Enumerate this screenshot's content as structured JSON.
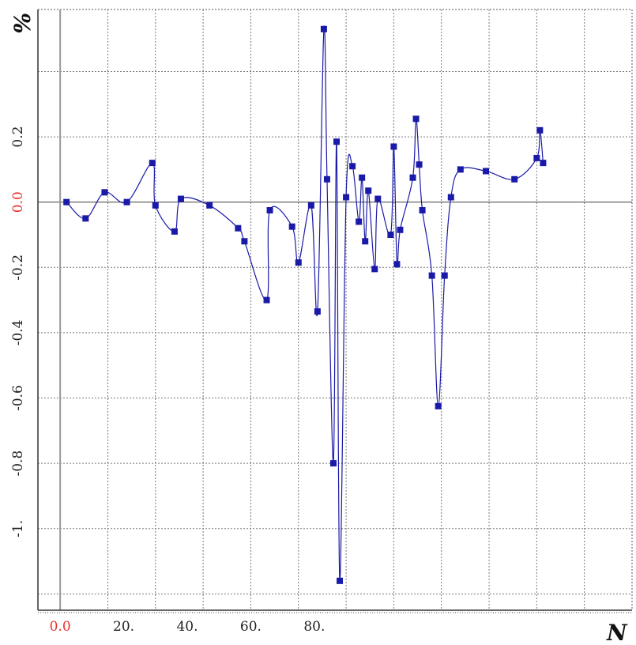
{
  "chart_data": {
    "type": "line",
    "title": "",
    "xlabel": "N",
    "ylabel": "%",
    "xlim": [
      -7,
      180
    ],
    "ylim": [
      -1.25,
      0.59
    ],
    "grid": true,
    "x_ticks": [
      {
        "value": 0,
        "label": "0.0",
        "color": "#e8302a"
      },
      {
        "value": 20,
        "label": "20."
      },
      {
        "value": 40,
        "label": "40."
      },
      {
        "value": 60,
        "label": "60."
      },
      {
        "value": 80,
        "label": "80."
      }
    ],
    "y_ticks": [
      {
        "value": 0.2,
        "label": "0.2"
      },
      {
        "value": 0.0,
        "label": "0.0",
        "color": "#e8302a"
      },
      {
        "value": -0.2,
        "label": "-0.2"
      },
      {
        "value": -0.4,
        "label": "-0.4"
      },
      {
        "value": -0.6,
        "label": "-0.6"
      },
      {
        "value": -0.8,
        "label": "-0.8"
      },
      {
        "value": -1.0,
        "label": "-1."
      }
    ],
    "x_gridlines": [
      15,
      30,
      45,
      60,
      75,
      90,
      105,
      120,
      135,
      150,
      165
    ],
    "y_gridlines": [
      0.4,
      0.2,
      -0.2,
      -0.4,
      -0.6,
      -0.8,
      -1.0,
      -1.2
    ],
    "series": [
      {
        "name": "",
        "color": "#1a1aa8",
        "marker": "square",
        "points": [
          [
            2,
            0.0
          ],
          [
            8,
            -0.05
          ],
          [
            14,
            0.03
          ],
          [
            21,
            0.0
          ],
          [
            29,
            0.12
          ],
          [
            30,
            -0.01
          ],
          [
            36,
            -0.09
          ],
          [
            38,
            0.01
          ],
          [
            47,
            -0.01
          ],
          [
            56,
            -0.08
          ],
          [
            58,
            -0.12
          ],
          [
            65,
            -0.3
          ],
          [
            66,
            -0.025
          ],
          [
            73,
            -0.075
          ],
          [
            75,
            -0.185
          ],
          [
            79,
            -0.01
          ],
          [
            81,
            -0.335
          ],
          [
            83,
            0.53
          ],
          [
            84,
            0.07
          ],
          [
            86,
            -0.8
          ],
          [
            87,
            0.185
          ],
          [
            88,
            -1.16
          ],
          [
            90,
            0.015
          ],
          [
            92,
            0.11
          ],
          [
            94,
            -0.06
          ],
          [
            95,
            0.075
          ],
          [
            96,
            -0.12
          ],
          [
            97,
            0.035
          ],
          [
            99,
            -0.205
          ],
          [
            100,
            0.01
          ],
          [
            104,
            -0.1
          ],
          [
            105,
            0.17
          ],
          [
            106,
            -0.19
          ],
          [
            107,
            -0.085
          ],
          [
            111,
            0.075
          ],
          [
            112,
            0.255
          ],
          [
            113,
            0.115
          ],
          [
            114,
            -0.025
          ],
          [
            117,
            -0.225
          ],
          [
            119,
            -0.625
          ],
          [
            121,
            -0.225
          ],
          [
            123,
            0.015
          ],
          [
            126,
            0.1
          ],
          [
            134,
            0.095
          ],
          [
            143,
            0.07
          ],
          [
            150,
            0.135
          ],
          [
            151,
            0.22
          ],
          [
            152,
            0.12
          ]
        ]
      }
    ]
  }
}
